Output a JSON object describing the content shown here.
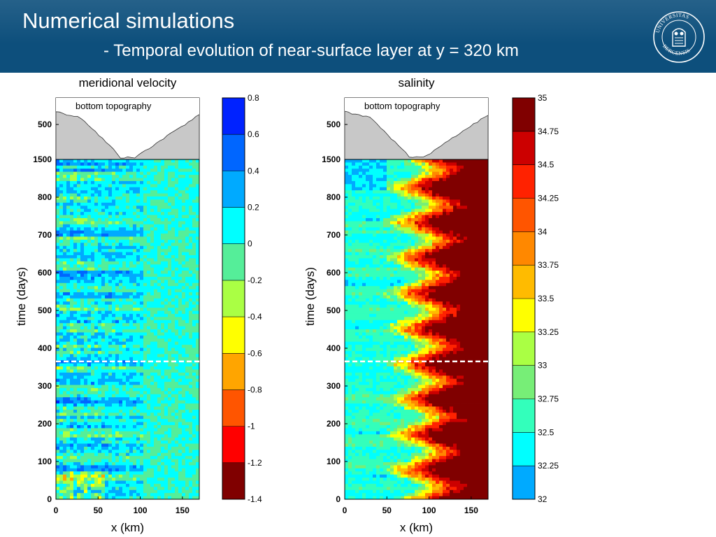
{
  "header": {
    "title": "Numerical simulations",
    "subtitle": "- Temporal evolution of near-surface layer at y = 320 km",
    "logo_text": "UNIVERSITAS BERGENSIS",
    "bg_color": "#0d4f7c"
  },
  "chart_data": [
    {
      "type": "heatmap",
      "title": "meridional velocity",
      "inset_label": "bottom topography",
      "xlabel": "x (km)",
      "ylabel": "time (days)",
      "xlim": [
        0,
        170
      ],
      "ylim": [
        0,
        900
      ],
      "x_ticks": [
        "0",
        "50",
        "100",
        "150"
      ],
      "x_tick_values": [
        0,
        50,
        100,
        150
      ],
      "y_ticks": [
        "0",
        "100",
        "200",
        "300",
        "400",
        "500",
        "600",
        "700",
        "800"
      ],
      "y_tick_values": [
        0,
        100,
        200,
        300,
        400,
        500,
        600,
        700,
        800
      ],
      "depth_ticks": [
        "500",
        "1500"
      ],
      "depth_tick_values": [
        500,
        1500
      ],
      "marker_time": 365,
      "colorbar": {
        "levels": [
          -1.4,
          -1.2,
          -1,
          -0.8,
          -0.6,
          -0.4,
          -0.2,
          0,
          0.2,
          0.4,
          0.6,
          0.8
        ],
        "labels": [
          "-1.4",
          "-1.2",
          "-1",
          "-0.8",
          "-0.6",
          "-0.4",
          "-0.2",
          "0",
          "0.2",
          "0.4",
          "0.6",
          "0.8"
        ],
        "colors": [
          "#800000",
          "#ff0000",
          "#ff5500",
          "#ffa500",
          "#ffff00",
          "#aaff44",
          "#55ee99",
          "#00ffff",
          "#00aaff",
          "#0066ff",
          "#0022ff"
        ]
      }
    },
    {
      "type": "heatmap",
      "title": "salinity",
      "inset_label": "bottom topography",
      "xlabel": "x (km)",
      "ylabel": "time (days)",
      "xlim": [
        0,
        170
      ],
      "ylim": [
        0,
        900
      ],
      "x_ticks": [
        "0",
        "50",
        "100",
        "150"
      ],
      "x_tick_values": [
        0,
        50,
        100,
        150
      ],
      "y_ticks": [
        "0",
        "100",
        "200",
        "300",
        "400",
        "500",
        "600",
        "700",
        "800"
      ],
      "y_tick_values": [
        0,
        100,
        200,
        300,
        400,
        500,
        600,
        700,
        800
      ],
      "depth_ticks": [
        "500",
        "1500"
      ],
      "depth_tick_values": [
        500,
        1500
      ],
      "marker_time": 365,
      "colorbar": {
        "levels": [
          32,
          32.25,
          32.5,
          32.75,
          33,
          33.25,
          33.5,
          33.75,
          34,
          34.25,
          34.5,
          34.75,
          35
        ],
        "labels": [
          "32",
          "32.25",
          "32.5",
          "32.75",
          "33",
          "33.25",
          "33.5",
          "33.75",
          "34",
          "34.25",
          "34.5",
          "34.75",
          "35"
        ],
        "colors": [
          "#00aaff",
          "#00ffff",
          "#33ffbb",
          "#77ee77",
          "#aaff44",
          "#ffff00",
          "#ffbb00",
          "#ff8800",
          "#ff5500",
          "#ff2200",
          "#cc0000",
          "#800000"
        ]
      }
    }
  ]
}
